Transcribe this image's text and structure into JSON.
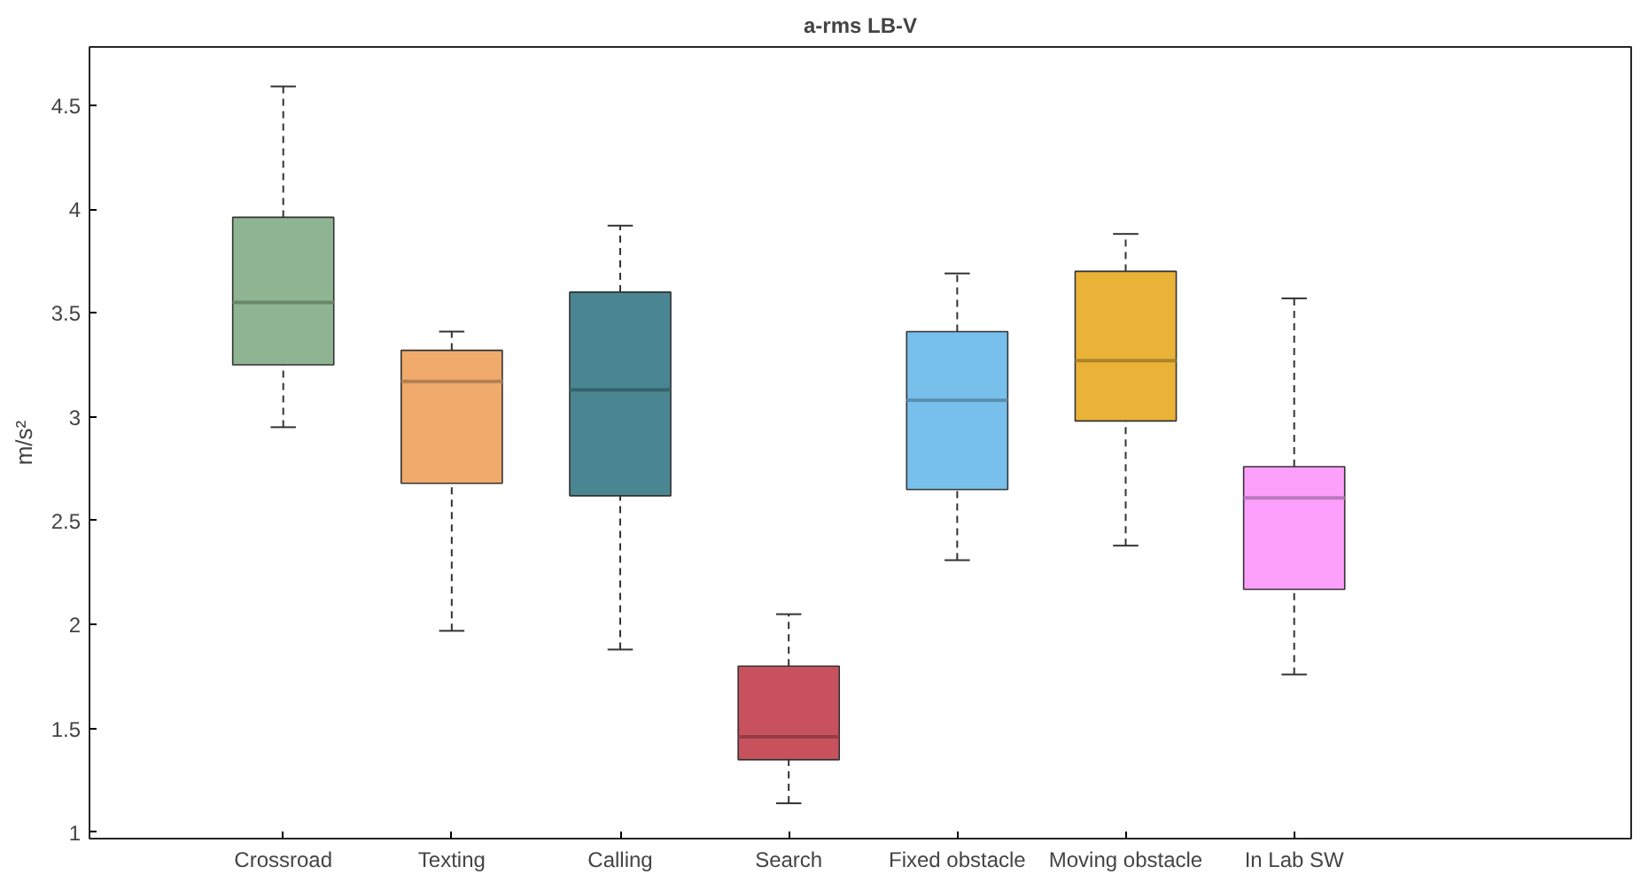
{
  "chart_data": {
    "type": "box",
    "title": "a-rms LB-V",
    "ylabel": "m/s²",
    "categories": [
      "Crossroad",
      "Texting",
      "Calling",
      "Search",
      "Fixed obstacle",
      "Moving obstacle",
      "In Lab SW"
    ],
    "colors": [
      "#8fb491",
      "#f0aa6c",
      "#4a8592",
      "#c7525d",
      "#78c0ec",
      "#eab236",
      "#fca0fc"
    ],
    "boxes": [
      {
        "low": 2.95,
        "q1": 3.25,
        "median": 3.55,
        "q3": 3.96,
        "high": 4.59
      },
      {
        "low": 1.97,
        "q1": 2.68,
        "median": 3.17,
        "q3": 3.32,
        "high": 3.41
      },
      {
        "low": 1.88,
        "q1": 2.62,
        "median": 3.13,
        "q3": 3.6,
        "high": 3.92
      },
      {
        "low": 1.14,
        "q1": 1.35,
        "median": 1.46,
        "q3": 1.8,
        "high": 2.05
      },
      {
        "low": 2.31,
        "q1": 2.65,
        "median": 3.08,
        "q3": 3.41,
        "high": 3.69
      },
      {
        "low": 2.38,
        "q1": 2.98,
        "median": 3.27,
        "q3": 3.7,
        "high": 3.88
      },
      {
        "low": 1.76,
        "q1": 2.17,
        "median": 2.61,
        "q3": 2.76,
        "high": 3.57
      }
    ],
    "ylim": [
      0.97,
      4.78
    ],
    "yticks": [
      1,
      1.5,
      2,
      2.5,
      3,
      3.5,
      4,
      4.5
    ],
    "grid": false
  }
}
